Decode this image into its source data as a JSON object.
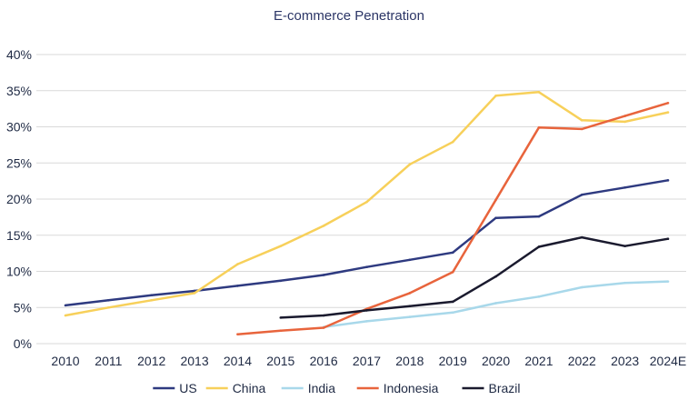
{
  "chart_data": {
    "type": "line",
    "title": "E-commerce Penetration",
    "xlabel": "",
    "ylabel": "",
    "categories": [
      "2010",
      "2011",
      "2012",
      "2013",
      "2014",
      "2015",
      "2016",
      "2017",
      "2018",
      "2019",
      "2020",
      "2021",
      "2022",
      "2023",
      "2024E"
    ],
    "yticks": [
      "0%",
      "5%",
      "10%",
      "15%",
      "20%",
      "25%",
      "30%",
      "35%",
      "40%"
    ],
    "ylim": [
      0,
      40
    ],
    "grid": true,
    "legend_position": "bottom",
    "series": [
      {
        "name": "US",
        "color": "#2e3a80",
        "values": [
          5.3,
          6.0,
          6.7,
          7.3,
          8.0,
          8.7,
          9.5,
          10.6,
          11.6,
          12.6,
          17.4,
          17.6,
          20.6,
          21.6,
          22.6
        ]
      },
      {
        "name": "China",
        "color": "#f7d05a",
        "values": [
          3.9,
          5.0,
          6.0,
          7.0,
          11.0,
          13.5,
          16.3,
          19.6,
          24.8,
          27.9,
          34.3,
          34.8,
          30.9,
          30.7,
          32.0
        ]
      },
      {
        "name": "India",
        "color": "#a8d8ea",
        "values": [
          null,
          null,
          null,
          null,
          null,
          null,
          2.3,
          3.1,
          3.7,
          4.3,
          5.6,
          6.5,
          7.8,
          8.4,
          8.6
        ]
      },
      {
        "name": "Indonesia",
        "color": "#e8643c",
        "values": [
          null,
          null,
          null,
          null,
          1.3,
          1.8,
          2.2,
          4.8,
          7.0,
          9.9,
          19.9,
          29.9,
          29.7,
          31.5,
          33.3
        ]
      },
      {
        "name": "Brazil",
        "color": "#1a1a2e",
        "values": [
          null,
          null,
          null,
          null,
          null,
          3.6,
          3.9,
          4.6,
          5.2,
          5.8,
          9.3,
          13.4,
          14.7,
          13.5,
          14.5
        ]
      }
    ]
  }
}
